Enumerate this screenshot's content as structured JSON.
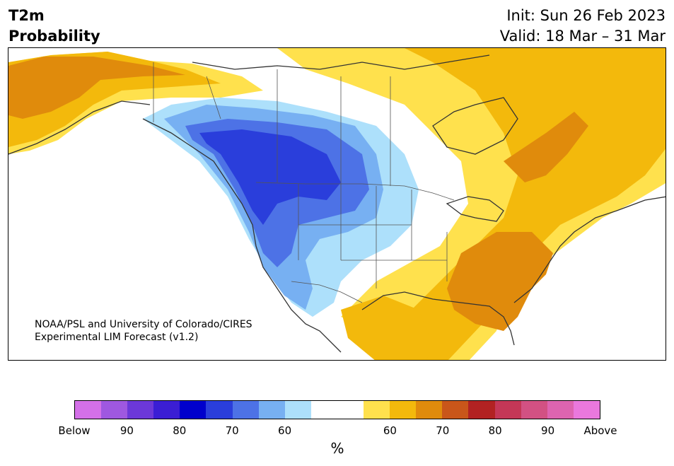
{
  "title": {
    "variable": "T2m",
    "subtitle": "Probability",
    "init": "Init: Sun 26 Feb 2023",
    "valid": "Valid: 18 Mar – 31 Mar"
  },
  "credit": {
    "line1": "NOAA/PSL and University of Colorado/CIRES",
    "line2": "Experimental LIM Forecast (v1.2)"
  },
  "colorbar": {
    "unit": "%",
    "colors": [
      "#d470e8",
      "#9f58e0",
      "#6c38d8",
      "#3b1ed4",
      "#0000cc",
      "#2a3edb",
      "#4d72e6",
      "#77b0f2",
      "#ade0fb",
      "#ffffff",
      "#ffffff",
      "#ffe14d",
      "#f3b90c",
      "#e08b0c",
      "#c9561a",
      "#b22222",
      "#c43757",
      "#d25183",
      "#dd64b0",
      "#ea78dd"
    ],
    "tick_labels": [
      "Below",
      "90",
      "80",
      "70",
      "60",
      "60",
      "70",
      "80",
      "90",
      "Above"
    ]
  },
  "map_colors": {
    "land_outline": "#333333",
    "border": "#555555"
  }
}
